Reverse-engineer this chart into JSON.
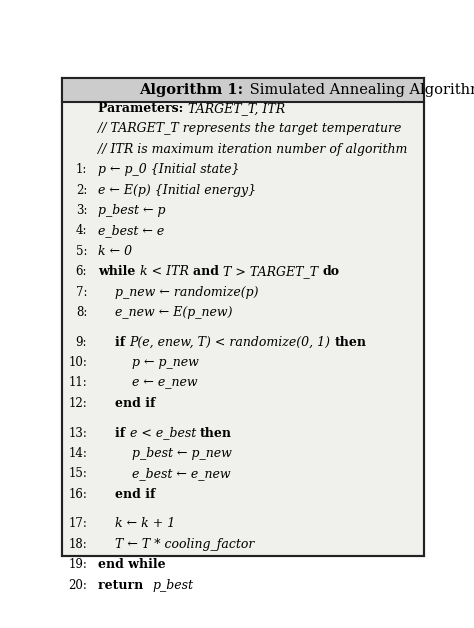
{
  "title_bold": "Algorithm 1:",
  "title_normal": " Simulated Annealing Algorithm",
  "bg_color": "#f0f0ec",
  "border_color": "#222222",
  "title_bg_color": "#cccccc",
  "fig_bg": "#ffffff",
  "lines": [
    {
      "bold": "Parameters: ",
      "italic": "TARGET_T, ITR",
      "num": "",
      "indent": 0,
      "blank_after": false
    },
    {
      "bold": "",
      "italic": "// TARGET_T represents the target temperature",
      "num": "",
      "indent": 0,
      "blank_after": false
    },
    {
      "bold": "",
      "italic": "// ITR is maximum iteration number of algorithm",
      "num": "",
      "indent": 0,
      "blank_after": false
    },
    {
      "bold": "",
      "italic": "p ← p_0 {Initial state}",
      "num": "1:",
      "indent": 0,
      "blank_after": false
    },
    {
      "bold": "",
      "italic": "e ← E(p) {Initial energy}",
      "num": "2:",
      "indent": 0,
      "blank_after": false
    },
    {
      "bold": "",
      "italic": "p_best ← p",
      "num": "3:",
      "indent": 0,
      "blank_after": false
    },
    {
      "bold": "",
      "italic": "e_best ← e",
      "num": "4:",
      "indent": 0,
      "blank_after": false
    },
    {
      "bold": "",
      "italic": "k ← 0",
      "num": "5:",
      "indent": 0,
      "blank_after": false
    },
    {
      "bold": "while ",
      "italic": "k < ITR ",
      "bold2": "and ",
      "italic2": "T > TARGET_T ",
      "bold3": "do",
      "italic3": "",
      "num": "6:",
      "indent": 0,
      "blank_after": false
    },
    {
      "bold": "",
      "italic": "p_new ← randomize(p)",
      "num": "7:",
      "indent": 1,
      "blank_after": false
    },
    {
      "bold": "",
      "italic": "e_new ← E(p_new)",
      "num": "8:",
      "indent": 1,
      "blank_after": true
    },
    {
      "bold": "if ",
      "italic": "P(e, enew, T) < randomize(0, 1) ",
      "bold2": "then",
      "italic2": "",
      "bold3": "",
      "italic3": "",
      "num": "9:",
      "indent": 1,
      "blank_after": false
    },
    {
      "bold": "",
      "italic": "p ← p_new",
      "num": "10:",
      "indent": 2,
      "blank_after": false
    },
    {
      "bold": "",
      "italic": "e ← e_new",
      "num": "11:",
      "indent": 2,
      "blank_after": false
    },
    {
      "bold": "end if",
      "italic": "",
      "num": "12:",
      "indent": 1,
      "blank_after": true
    },
    {
      "bold": "if ",
      "italic": "e < e_best ",
      "bold2": "then",
      "italic2": "",
      "bold3": "",
      "italic3": "",
      "num": "13:",
      "indent": 1,
      "blank_after": false
    },
    {
      "bold": "",
      "italic": "p_best ← p_new",
      "num": "14:",
      "indent": 2,
      "blank_after": false
    },
    {
      "bold": "",
      "italic": "e_best ← e_new",
      "num": "15:",
      "indent": 2,
      "blank_after": false
    },
    {
      "bold": "end if",
      "italic": "",
      "num": "16:",
      "indent": 1,
      "blank_after": true
    },
    {
      "bold": "",
      "italic": "k ← k + 1",
      "num": "17:",
      "indent": 1,
      "blank_after": false
    },
    {
      "bold": "",
      "italic": "T ← T * cooling_factor",
      "num": "18:",
      "indent": 1,
      "blank_after": false
    },
    {
      "bold": "end while",
      "italic": "",
      "num": "19:",
      "indent": 0,
      "blank_after": false
    },
    {
      "bold": "return  ",
      "italic": "p_best",
      "num": "20:",
      "indent": 0,
      "blank_after": false
    }
  ]
}
